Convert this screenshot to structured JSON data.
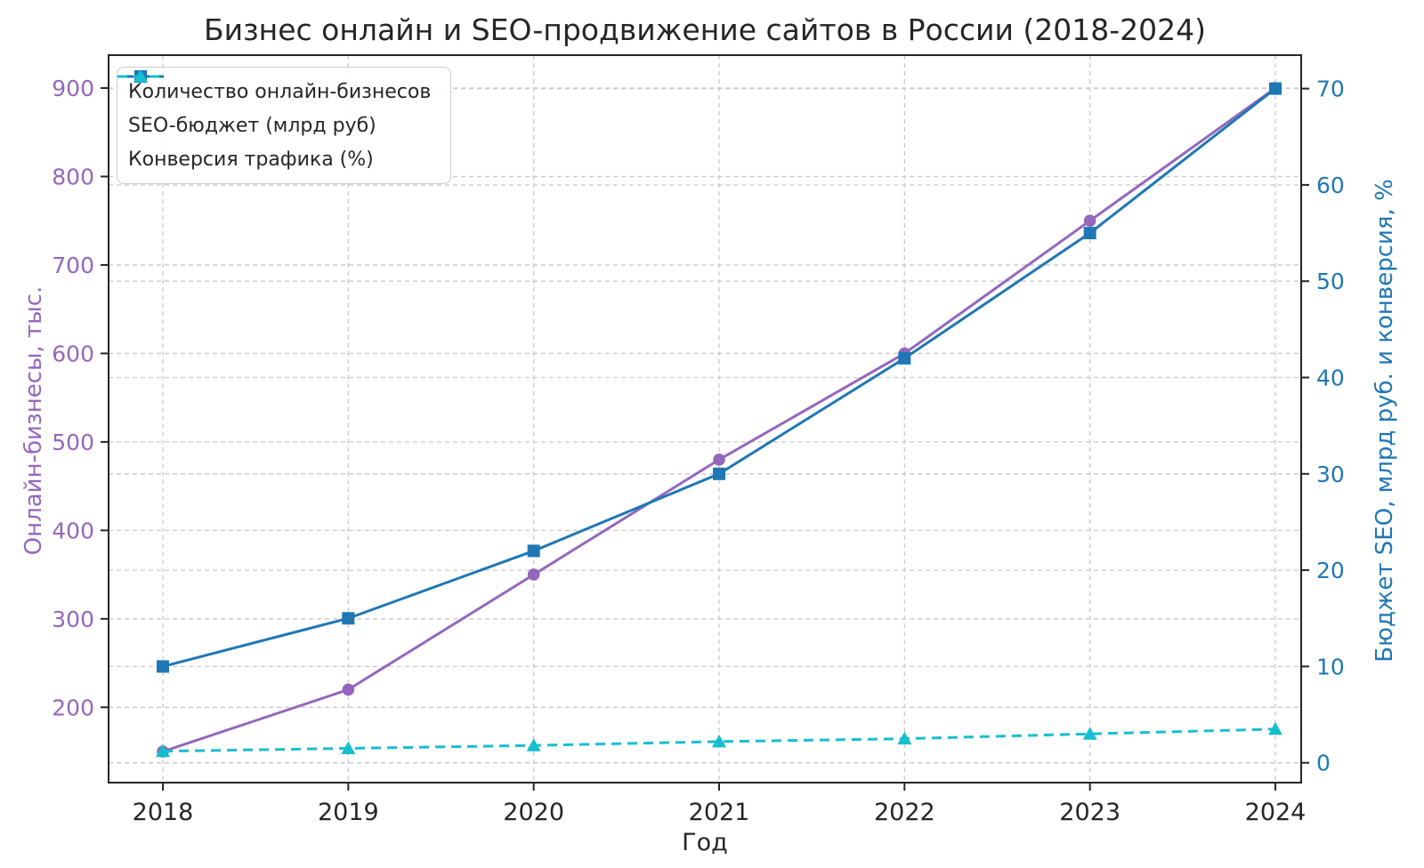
{
  "title": "Бизнес онлайн и SEO-продвижение сайтов в России (2018-2024)",
  "xlabel": "Год",
  "ylabel_left": "Онлайн-бизнесы, тыс.",
  "ylabel_right": "Бюджет SEO, млрд руб. и конверсия, %",
  "colors": {
    "purple": "#9467bd",
    "blue": "#1f77b4",
    "cyan": "#17becf",
    "grid": "#c9c9c9",
    "spine": "#262626",
    "tick_label_x": "#262626",
    "title_text": "#262626"
  },
  "chart_data": {
    "type": "line",
    "x": [
      2018,
      2019,
      2020,
      2021,
      2022,
      2023,
      2024
    ],
    "series": [
      {
        "name": "Количество онлайн-бизнесов",
        "axis": "left",
        "color": "#9467bd",
        "marker": "circle",
        "linestyle": "solid",
        "values": [
          150,
          220,
          350,
          480,
          600,
          750,
          900
        ]
      },
      {
        "name": "SEO-бюджет (млрд руб)",
        "axis": "right",
        "color": "#1f77b4",
        "marker": "square",
        "linestyle": "solid",
        "values": [
          10,
          15,
          22,
          30,
          42,
          55,
          70
        ]
      },
      {
        "name": "Конверсия трафика (%)",
        "axis": "right",
        "color": "#17becf",
        "marker": "triangle",
        "linestyle": "dashed",
        "values": [
          1.2,
          1.5,
          1.8,
          2.2,
          2.5,
          3.0,
          3.5
        ]
      }
    ],
    "left_axis": {
      "ticks": [
        200,
        300,
        400,
        500,
        600,
        700,
        800,
        900
      ],
      "label_color": "#9467bd"
    },
    "right_axis": {
      "ticks": [
        0,
        10,
        20,
        30,
        40,
        50,
        60,
        70
      ],
      "label_color": "#1f77b4"
    },
    "x_ticks": [
      "2018",
      "2019",
      "2020",
      "2021",
      "2022",
      "2023",
      "2024"
    ],
    "grid": true,
    "legend_position": "upper-left"
  }
}
